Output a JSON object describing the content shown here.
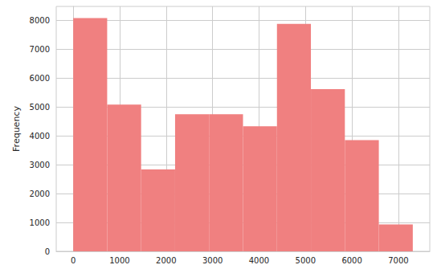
{
  "chart_data": {
    "type": "histogram",
    "bins": [
      0,
      731,
      1462,
      2193,
      2924,
      3655,
      4386,
      5117,
      5848,
      6579,
      7310
    ],
    "counts": [
      8080,
      5080,
      2840,
      4750,
      4750,
      4330,
      7880,
      5620,
      3850,
      930
    ],
    "color": "#f08080",
    "y_label": "Frequency",
    "xlim": [
      -365.5,
      7675.5
    ],
    "xticks": [
      0,
      1000,
      2000,
      3000,
      4000,
      5000,
      6000,
      7000
    ],
    "ylim": [
      0,
      8484
    ],
    "yticks": [
      0,
      1000,
      2000,
      3000,
      4000,
      5000,
      6000,
      7000,
      8000
    ],
    "grid": true
  }
}
